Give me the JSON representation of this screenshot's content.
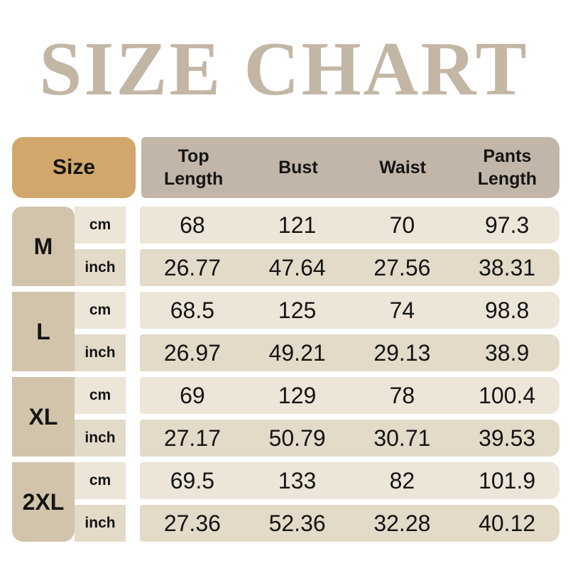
{
  "title": "SIZE CHART",
  "colors": {
    "title_text": "#c3b6a5",
    "header_size_bg": "#d2a76b",
    "header_bg": "#c2b6a9",
    "size_cell_bg": "#d2c4ab",
    "row_cm_bg": "#ece5d8",
    "row_inch_bg": "#e3dac8",
    "text": "#141414"
  },
  "table": {
    "size_header": "Size",
    "columns": [
      "Top Length",
      "Bust",
      "Waist",
      "Pants Length"
    ],
    "units": [
      "cm",
      "inch"
    ],
    "rows": [
      {
        "size": "M",
        "cm": [
          "68",
          "121",
          "70",
          "97.3"
        ],
        "inch": [
          "26.77",
          "47.64",
          "27.56",
          "38.31"
        ]
      },
      {
        "size": "L",
        "cm": [
          "68.5",
          "125",
          "74",
          "98.8"
        ],
        "inch": [
          "26.97",
          "49.21",
          "29.13",
          "38.9"
        ]
      },
      {
        "size": "XL",
        "cm": [
          "69",
          "129",
          "78",
          "100.4"
        ],
        "inch": [
          "27.17",
          "50.79",
          "30.71",
          "39.53"
        ]
      },
      {
        "size": "2XL",
        "cm": [
          "69.5",
          "133",
          "82",
          "101.9"
        ],
        "inch": [
          "27.36",
          "52.36",
          "32.28",
          "40.12"
        ]
      }
    ]
  },
  "chart_data": {
    "type": "table",
    "title": "SIZE CHART",
    "columns": [
      "Size",
      "Unit",
      "Top Length",
      "Bust",
      "Waist",
      "Pants Length"
    ],
    "rows": [
      [
        "M",
        "cm",
        68,
        121,
        70,
        97.3
      ],
      [
        "M",
        "inch",
        26.77,
        47.64,
        27.56,
        38.31
      ],
      [
        "L",
        "cm",
        68.5,
        125,
        74,
        98.8
      ],
      [
        "L",
        "inch",
        26.97,
        49.21,
        29.13,
        38.9
      ],
      [
        "XL",
        "cm",
        69,
        129,
        78,
        100.4
      ],
      [
        "XL",
        "inch",
        27.17,
        50.79,
        30.71,
        39.53
      ],
      [
        "2XL",
        "cm",
        69.5,
        133,
        82,
        101.9
      ],
      [
        "2XL",
        "inch",
        27.36,
        52.36,
        32.28,
        40.12
      ]
    ]
  }
}
